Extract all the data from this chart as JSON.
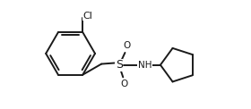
{
  "background": "#ffffff",
  "line_color": "#1a1a1a",
  "line_width": 1.4,
  "font_size": 7.5,
  "xlim": [
    -0.2,
    3.6
  ],
  "ylim": [
    -1.1,
    1.1
  ],
  "figsize": [
    2.8,
    1.22
  ],
  "dpi": 100
}
